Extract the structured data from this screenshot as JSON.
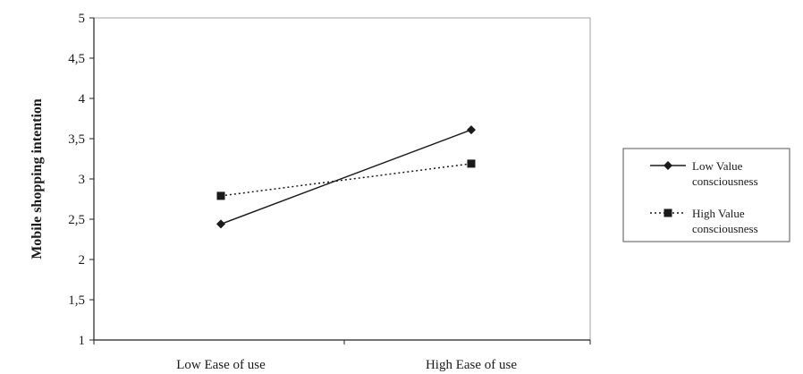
{
  "chart_data": {
    "type": "line",
    "title": "",
    "xlabel": "",
    "ylabel": "Mobile shopping intention",
    "categories": [
      "Low Ease of use",
      "High Ease of use"
    ],
    "ylim": [
      1,
      5
    ],
    "yticks": [
      "1",
      "1,5",
      "2",
      "2,5",
      "3",
      "3,5",
      "4",
      "4,5",
      "5"
    ],
    "ytick_values": [
      1,
      1.5,
      2,
      2.5,
      3,
      3.5,
      4,
      4.5,
      5
    ],
    "grid": false,
    "legend_position": "right",
    "series": [
      {
        "name_lines": [
          "Low Value",
          "consciousness"
        ],
        "values": [
          2.44,
          3.61
        ],
        "line_style": "solid",
        "marker": "diamond",
        "color": "#1a1a1a"
      },
      {
        "name_lines": [
          "High Value",
          "consciousness"
        ],
        "values": [
          2.79,
          3.19
        ],
        "line_style": "dotted",
        "marker": "square",
        "color": "#1a1a1a"
      }
    ]
  }
}
